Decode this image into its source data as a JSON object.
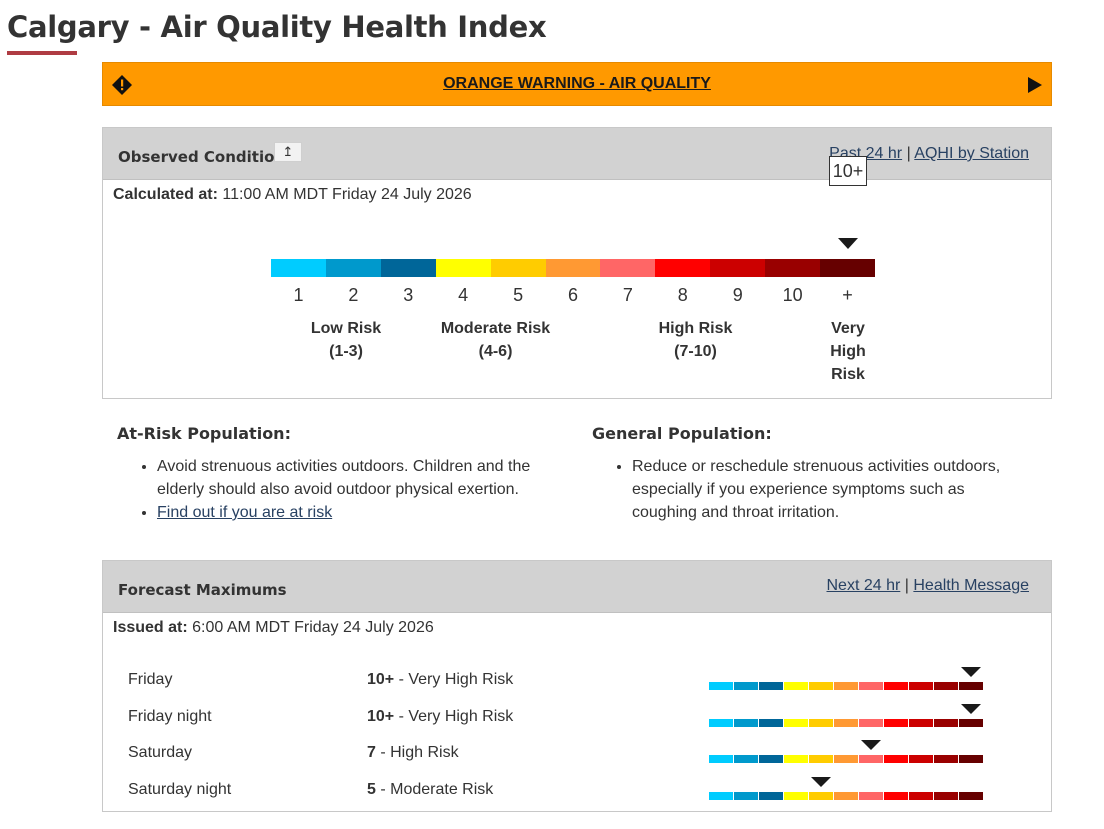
{
  "page": {
    "title": "Calgary - Air Quality Health Index"
  },
  "warning": {
    "label": "ORANGE WARNING - AIR QUALITY",
    "color": "#ff9900"
  },
  "observed": {
    "heading": "Observed Conditions",
    "pin_symbol": "↥",
    "link_past": "Past 24 hr",
    "link_sep": "|",
    "link_station": "AQHI by Station",
    "calc_label": "Calculated at:",
    "calc_value": "11:00 AM MDT Friday 24 July 2026",
    "current_marker": "10+",
    "current_index": 11,
    "scale_numbers": [
      "1",
      "2",
      "3",
      "4",
      "5",
      "6",
      "7",
      "8",
      "9",
      "10",
      "+"
    ],
    "scale_colors": [
      "#00ccff",
      "#0099cc",
      "#006699",
      "#ffff00",
      "#ffcc00",
      "#ff9933",
      "#ff6666",
      "#ff0000",
      "#cc0000",
      "#990000",
      "#660000"
    ],
    "risk_low": {
      "line1": "Low Risk",
      "line2": "(1-3)"
    },
    "risk_moderate": {
      "line1": "Moderate Risk",
      "line2": "(4-6)"
    },
    "risk_high": {
      "line1": "High Risk",
      "line2": "(7-10)"
    },
    "risk_very_high": {
      "line1": "Very",
      "line2": "High",
      "line3": "Risk"
    }
  },
  "at_risk": {
    "heading": "At-Risk Population:",
    "item1": "Avoid strenuous activities outdoors. Children and the elderly should also avoid outdoor physical exertion.",
    "item2_link": "Find out if you are at risk"
  },
  "general": {
    "heading": "General Population:",
    "item1": "Reduce or reschedule strenuous activities outdoors, especially if you experience symptoms such as coughing and throat irritation."
  },
  "forecast": {
    "heading": "Forecast Maximums",
    "link_next": "Next 24 hr",
    "link_sep": "|",
    "link_health": "Health Message",
    "issued_label": "Issued at:",
    "issued_value": "6:00 AM MDT Friday 24 July 2026",
    "rows": [
      {
        "day": "Friday",
        "value": "10+",
        "risk": " - Very High Risk",
        "index": 11
      },
      {
        "day": "Friday night",
        "value": "10+",
        "risk": " - Very High Risk",
        "index": 11
      },
      {
        "day": "Saturday",
        "value": "7",
        "risk": " - High Risk",
        "index": 7
      },
      {
        "day": "Saturday night",
        "value": "5",
        "risk": " - Moderate Risk",
        "index": 5
      }
    ]
  }
}
